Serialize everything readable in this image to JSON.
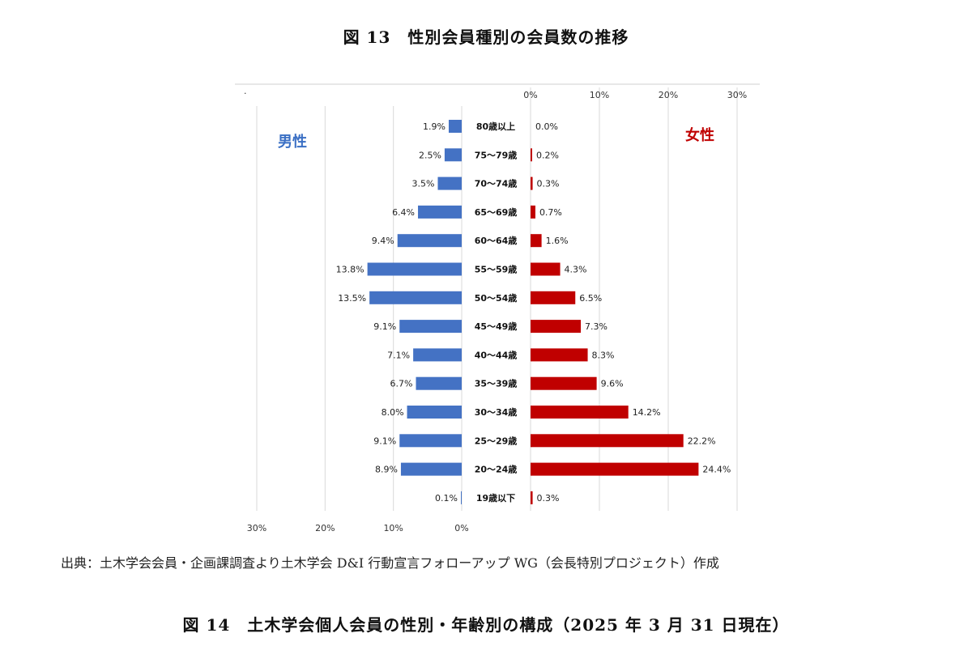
{
  "figure13_title": "図 13　性別会員種別の会員数の推移",
  "source_note": "出典：土木学会会員・企画課調査より土木学会 D&I 行動宣言フォローアップ WG（会長特別プロジェクト）作成",
  "figure14_title": "図 14　土木学会個人会員の性別・年齢別の構成（2025 年 3 月 31 日現在）",
  "colors": {
    "male": "#4472C4",
    "female": "#C00000",
    "male_label": "#3A6FC4",
    "female_label": "#C00000"
  },
  "chart_data": {
    "type": "bar",
    "orientation": "horizontal-population-pyramid",
    "categories": [
      "80歳以上",
      "75～79歳",
      "70～74歳",
      "65～69歳",
      "60～64歳",
      "55～59歳",
      "50～54歳",
      "45～49歳",
      "40～44歳",
      "35～39歳",
      "30～34歳",
      "25～29歳",
      "20～24歳",
      "19歳以下"
    ],
    "series": [
      {
        "name": "男性",
        "values": [
          1.9,
          2.5,
          3.5,
          6.4,
          9.4,
          13.8,
          13.5,
          9.1,
          7.1,
          6.7,
          8.0,
          9.1,
          8.9,
          0.1
        ],
        "labels": [
          "1.9%",
          "2.5%",
          "3.5%",
          "6.4%",
          "9.4%",
          "13.8%",
          "13.5%",
          "9.1%",
          "7.1%",
          "6.7%",
          "8.0%",
          "9.1%",
          "8.9%",
          "0.1%"
        ]
      },
      {
        "name": "女性",
        "values": [
          0.0,
          0.2,
          0.3,
          0.7,
          1.6,
          4.3,
          6.5,
          7.3,
          8.3,
          9.6,
          14.2,
          22.2,
          24.4,
          0.3
        ],
        "labels": [
          "0.0%",
          "0.2%",
          "0.3%",
          "0.7%",
          "1.6%",
          "4.3%",
          "6.5%",
          "7.3%",
          "8.3%",
          "9.6%",
          "14.2%",
          "22.2%",
          "24.4%",
          "0.3%"
        ]
      }
    ],
    "male_axis_ticks": [
      "30%",
      "20%",
      "10%",
      "0%"
    ],
    "female_axis_ticks": [
      "0%",
      "10%",
      "20%",
      "30%"
    ],
    "xlim": [
      0,
      30
    ],
    "male_axis_position": "bottom",
    "female_axis_position": "top",
    "corner_mark": "·"
  }
}
